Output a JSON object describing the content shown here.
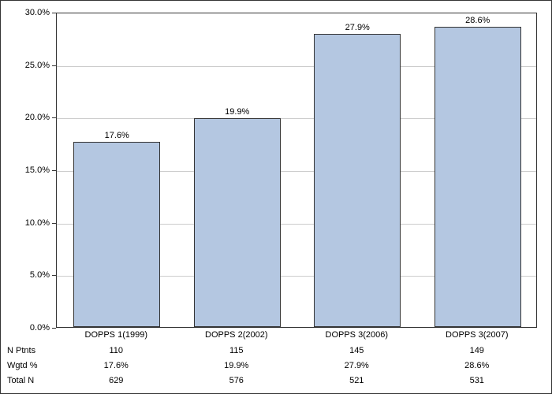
{
  "chart": {
    "type": "bar",
    "background_color": "#ffffff",
    "border_color": "#333333",
    "bar_color": "#b4c7e1",
    "bar_border_color": "#333333",
    "grid_color": "#cccccc",
    "text_color": "#000000",
    "font_size": 11,
    "ylim": [
      0,
      30
    ],
    "ytick_step": 5,
    "yticks": [
      {
        "value": 0,
        "label": "0.0%"
      },
      {
        "value": 5,
        "label": "5.0%"
      },
      {
        "value": 10,
        "label": "10.0%"
      },
      {
        "value": 15,
        "label": "15.0%"
      },
      {
        "value": 20,
        "label": "20.0%"
      },
      {
        "value": 25,
        "label": "25.0%"
      },
      {
        "value": 30,
        "label": "30.0%"
      }
    ],
    "categories": [
      "DOPPS 1(1999)",
      "DOPPS 2(2002)",
      "DOPPS 3(2006)",
      "DOPPS 3(2007)"
    ],
    "values": [
      17.6,
      19.9,
      27.9,
      28.6
    ],
    "value_labels": [
      "17.6%",
      "19.9%",
      "27.9%",
      "28.6%"
    ],
    "bar_width_ratio": 0.72,
    "table_rows": [
      {
        "label": "N Ptnts",
        "cells": [
          "110",
          "115",
          "145",
          "149"
        ]
      },
      {
        "label": "Wgtd %",
        "cells": [
          "17.6%",
          "19.9%",
          "27.9%",
          "28.6%"
        ]
      },
      {
        "label": "Total N",
        "cells": [
          "629",
          "576",
          "521",
          "531"
        ]
      }
    ]
  }
}
